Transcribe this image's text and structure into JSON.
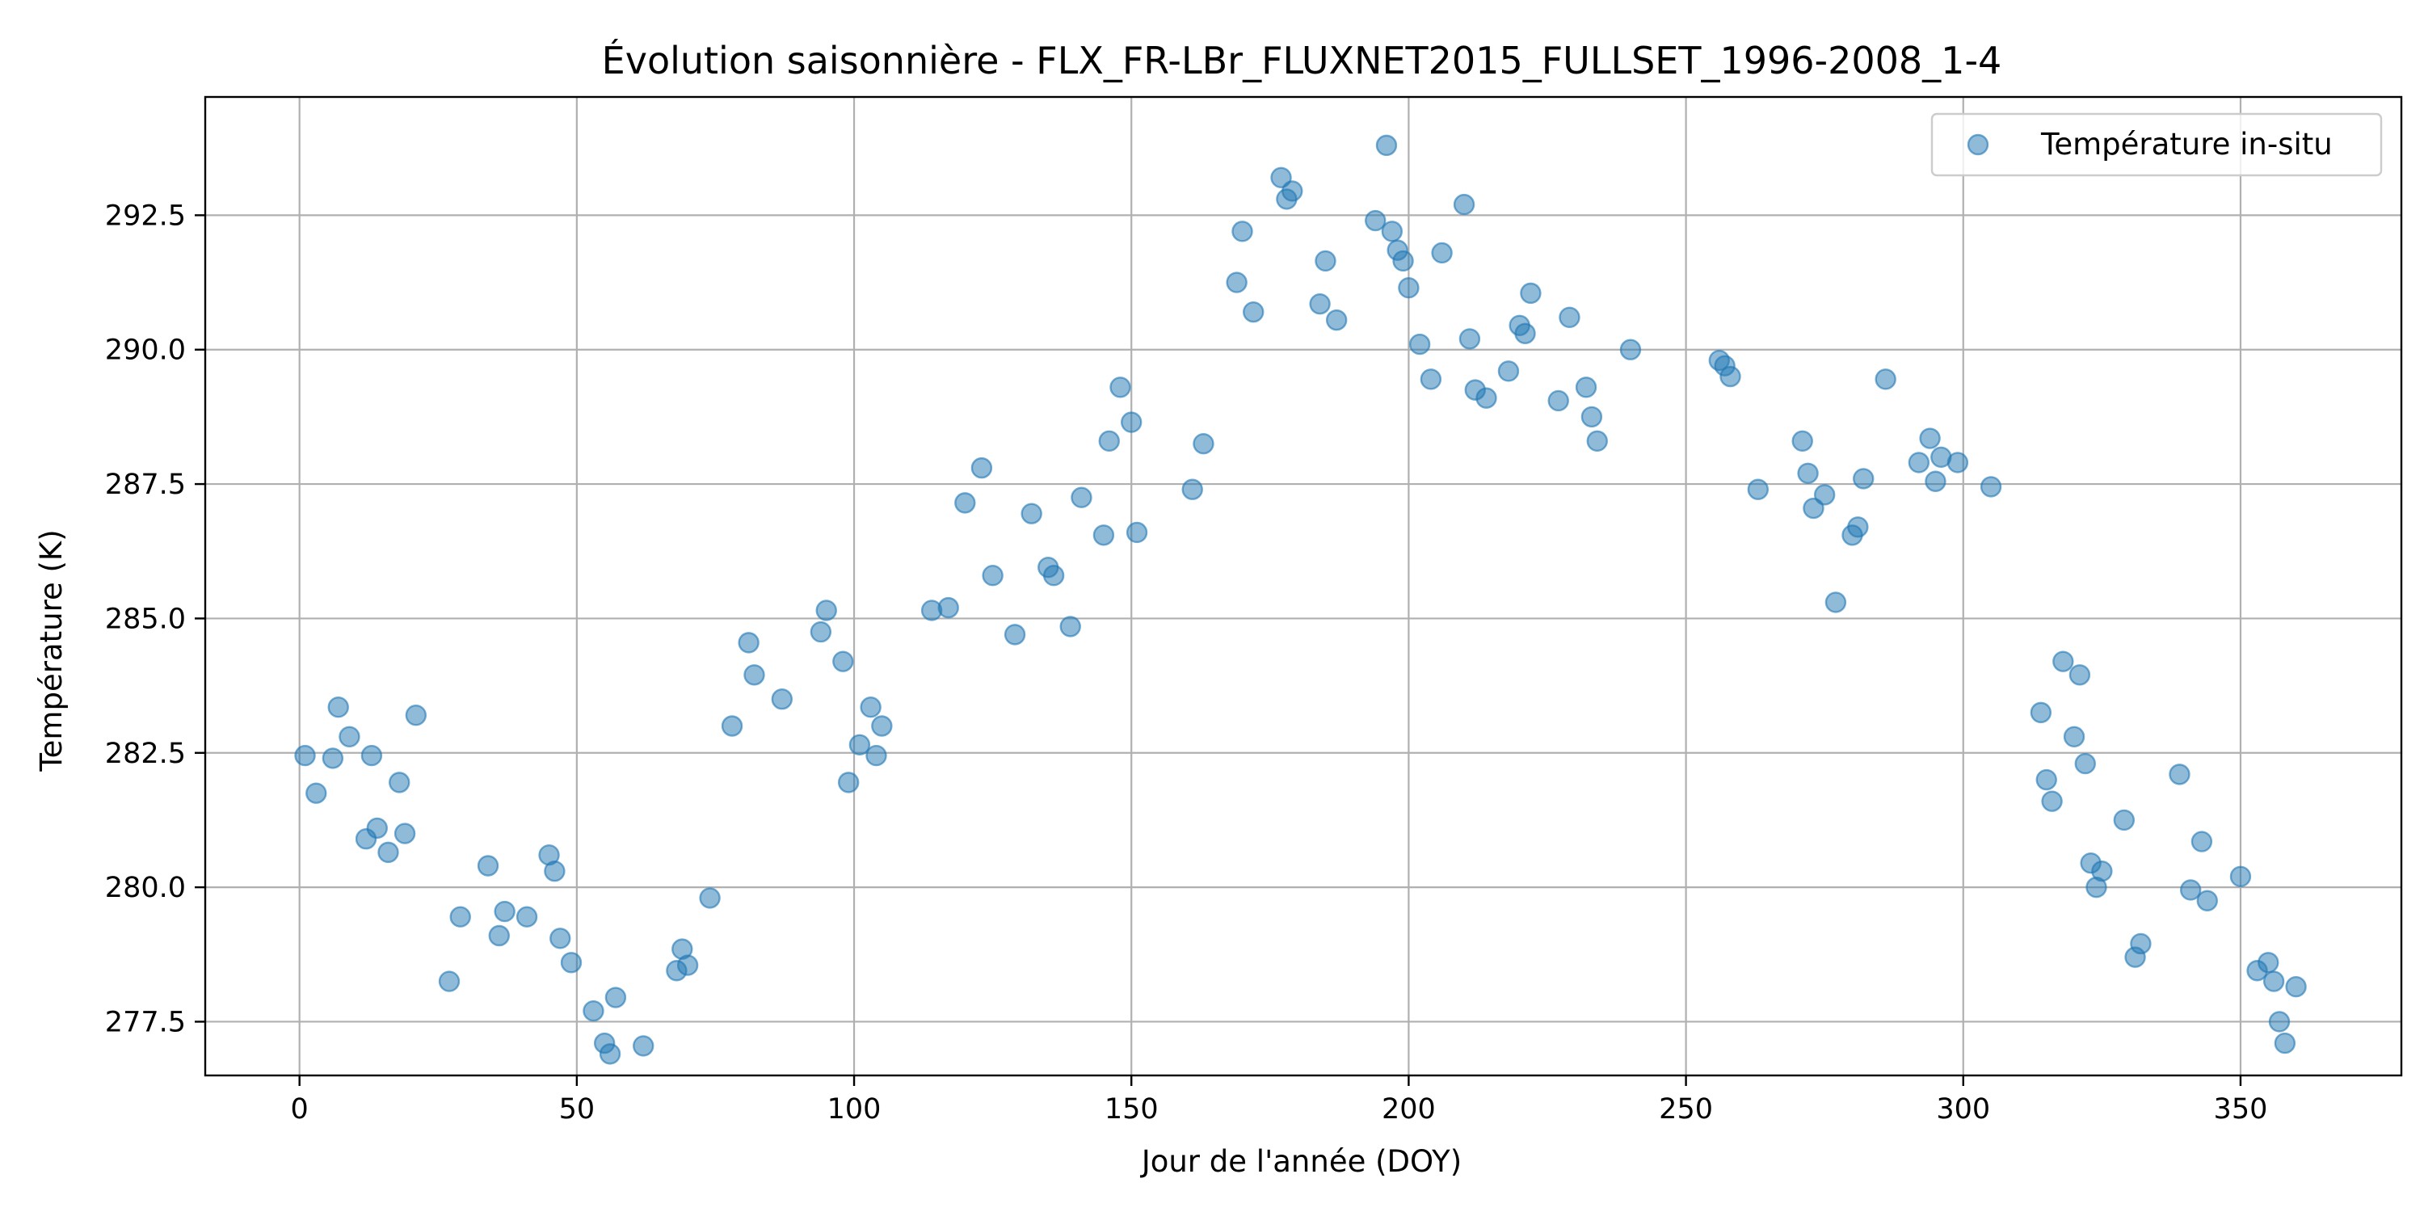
{
  "chart_data": {
    "type": "scatter",
    "title": "Évolution saisonnière - FLX_FR-LBr_FLUXNET2015_FULLSET_1996-2008_1-4",
    "xlabel": "Jour de l'année (DOY)",
    "ylabel": "Température (K)",
    "xlim": [
      -17,
      379
    ],
    "ylim": [
      276.5,
      294.7
    ],
    "xticks": [
      0,
      50,
      100,
      150,
      200,
      250,
      300,
      350
    ],
    "yticks": [
      277.5,
      280.0,
      282.5,
      285.0,
      287.5,
      290.0,
      292.5
    ],
    "ytick_labels": [
      "277.5",
      "280.0",
      "282.5",
      "285.0",
      "287.5",
      "290.0",
      "292.5"
    ],
    "grid": true,
    "legend_position": "top-right",
    "marker_color": "#1f77b4",
    "series": [
      {
        "name": "Température in-situ",
        "points": [
          [
            1,
            282.45
          ],
          [
            3,
            281.75
          ],
          [
            6,
            282.4
          ],
          [
            7,
            283.35
          ],
          [
            9,
            282.8
          ],
          [
            12,
            280.9
          ],
          [
            13,
            282.45
          ],
          [
            14,
            281.1
          ],
          [
            16,
            280.65
          ],
          [
            18,
            281.95
          ],
          [
            19,
            281.0
          ],
          [
            21,
            283.2
          ],
          [
            27,
            278.25
          ],
          [
            29,
            279.45
          ],
          [
            34,
            280.4
          ],
          [
            36,
            279.1
          ],
          [
            37,
            279.55
          ],
          [
            41,
            279.45
          ],
          [
            45,
            280.6
          ],
          [
            46,
            280.3
          ],
          [
            47,
            279.05
          ],
          [
            49,
            278.6
          ],
          [
            53,
            277.7
          ],
          [
            55,
            277.1
          ],
          [
            56,
            276.9
          ],
          [
            57,
            277.95
          ],
          [
            62,
            277.05
          ],
          [
            68,
            278.45
          ],
          [
            69,
            278.85
          ],
          [
            70,
            278.55
          ],
          [
            74,
            279.8
          ],
          [
            78,
            283.0
          ],
          [
            81,
            284.55
          ],
          [
            82,
            283.95
          ],
          [
            87,
            283.5
          ],
          [
            94,
            284.75
          ],
          [
            95,
            285.15
          ],
          [
            98,
            284.2
          ],
          [
            99,
            281.95
          ],
          [
            101,
            282.65
          ],
          [
            103,
            283.35
          ],
          [
            104,
            282.45
          ],
          [
            105,
            283.0
          ],
          [
            114,
            285.15
          ],
          [
            117,
            285.2
          ],
          [
            120,
            287.15
          ],
          [
            123,
            287.8
          ],
          [
            125,
            285.8
          ],
          [
            129,
            284.7
          ],
          [
            132,
            286.95
          ],
          [
            135,
            285.95
          ],
          [
            136,
            285.8
          ],
          [
            139,
            284.85
          ],
          [
            141,
            287.25
          ],
          [
            145,
            286.55
          ],
          [
            146,
            288.3
          ],
          [
            148,
            289.3
          ],
          [
            150,
            288.65
          ],
          [
            151,
            286.6
          ],
          [
            161,
            287.4
          ],
          [
            163,
            288.25
          ],
          [
            169,
            291.25
          ],
          [
            170,
            292.2
          ],
          [
            172,
            290.7
          ],
          [
            177,
            293.2
          ],
          [
            178,
            292.8
          ],
          [
            179,
            292.95
          ],
          [
            184,
            290.85
          ],
          [
            185,
            291.65
          ],
          [
            187,
            290.55
          ],
          [
            194,
            292.4
          ],
          [
            196,
            293.8
          ],
          [
            197,
            292.2
          ],
          [
            198,
            291.85
          ],
          [
            199,
            291.65
          ],
          [
            200,
            291.15
          ],
          [
            202,
            290.1
          ],
          [
            204,
            289.45
          ],
          [
            206,
            291.8
          ],
          [
            210,
            292.7
          ],
          [
            211,
            290.2
          ],
          [
            212,
            289.25
          ],
          [
            214,
            289.1
          ],
          [
            218,
            289.6
          ],
          [
            220,
            290.45
          ],
          [
            221,
            290.3
          ],
          [
            222,
            291.05
          ],
          [
            227,
            289.05
          ],
          [
            229,
            290.6
          ],
          [
            232,
            289.3
          ],
          [
            233,
            288.75
          ],
          [
            234,
            288.3
          ],
          [
            240,
            290.0
          ],
          [
            256,
            289.8
          ],
          [
            257,
            289.7
          ],
          [
            258,
            289.5
          ],
          [
            263,
            287.4
          ],
          [
            271,
            288.3
          ],
          [
            272,
            287.7
          ],
          [
            273,
            287.05
          ],
          [
            275,
            287.3
          ],
          [
            277,
            285.3
          ],
          [
            280,
            286.55
          ],
          [
            281,
            286.7
          ],
          [
            282,
            287.6
          ],
          [
            286,
            289.45
          ],
          [
            292,
            287.9
          ],
          [
            294,
            288.35
          ],
          [
            295,
            287.55
          ],
          [
            296,
            288.0
          ],
          [
            299,
            287.9
          ],
          [
            305,
            287.45
          ],
          [
            314,
            283.25
          ],
          [
            315,
            282.0
          ],
          [
            316,
            281.6
          ],
          [
            318,
            284.2
          ],
          [
            320,
            282.8
          ],
          [
            321,
            283.95
          ],
          [
            322,
            282.3
          ],
          [
            323,
            280.45
          ],
          [
            324,
            280.0
          ],
          [
            325,
            280.3
          ],
          [
            329,
            281.25
          ],
          [
            331,
            278.7
          ],
          [
            332,
            278.95
          ],
          [
            339,
            282.1
          ],
          [
            341,
            279.95
          ],
          [
            343,
            280.85
          ],
          [
            344,
            279.75
          ],
          [
            350,
            280.2
          ],
          [
            353,
            278.45
          ],
          [
            355,
            278.6
          ],
          [
            356,
            278.25
          ],
          [
            357,
            277.5
          ],
          [
            358,
            277.1
          ],
          [
            360,
            278.15
          ]
        ]
      }
    ]
  }
}
